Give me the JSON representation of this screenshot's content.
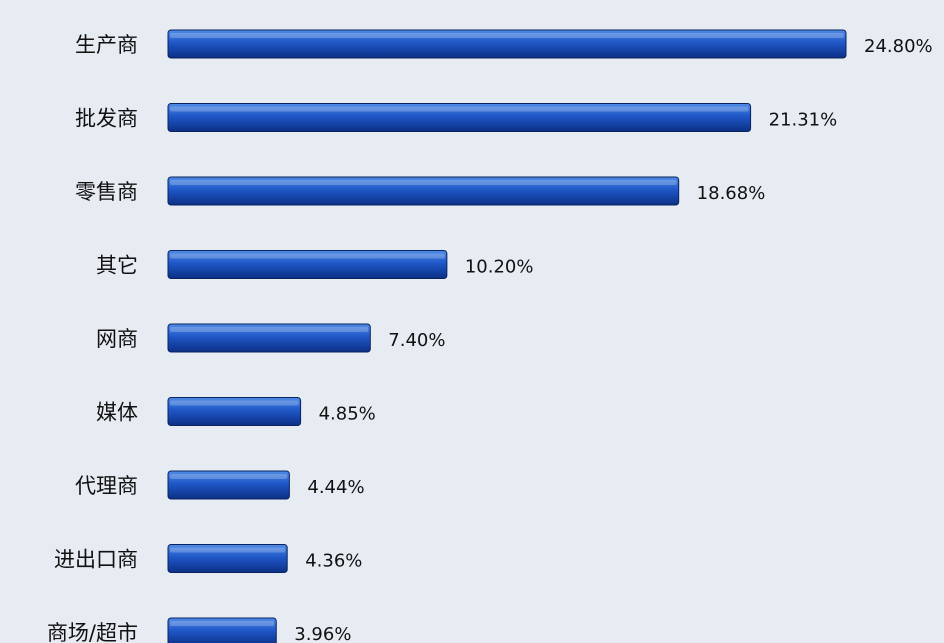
{
  "chart_data": {
    "type": "bar",
    "orientation": "horizontal",
    "categories": [
      "生产商",
      "批发商",
      "零售商",
      "其它",
      "网商",
      "媒体",
      "代理商",
      "进出口商",
      "商场/超市"
    ],
    "values": [
      24.8,
      21.31,
      18.68,
      10.2,
      7.4,
      4.85,
      4.44,
      4.36,
      3.96
    ],
    "value_labels": [
      "24.80%",
      "21.31%",
      "18.68%",
      "10.20%",
      "7.40%",
      "4.85%",
      "4.44%",
      "4.36%",
      "3.96%"
    ],
    "title": "",
    "xlabel": "",
    "ylabel": "",
    "xlim": [
      0,
      24.8
    ],
    "grid": false,
    "legend": "none",
    "colors": {
      "background": "#e7ecf2",
      "bar_light": "#4f8be6",
      "bar_mid": "#1f57c7",
      "bar_dark": "#0c2f86",
      "bar_edge": "#0a235f",
      "text": "#111111"
    }
  }
}
